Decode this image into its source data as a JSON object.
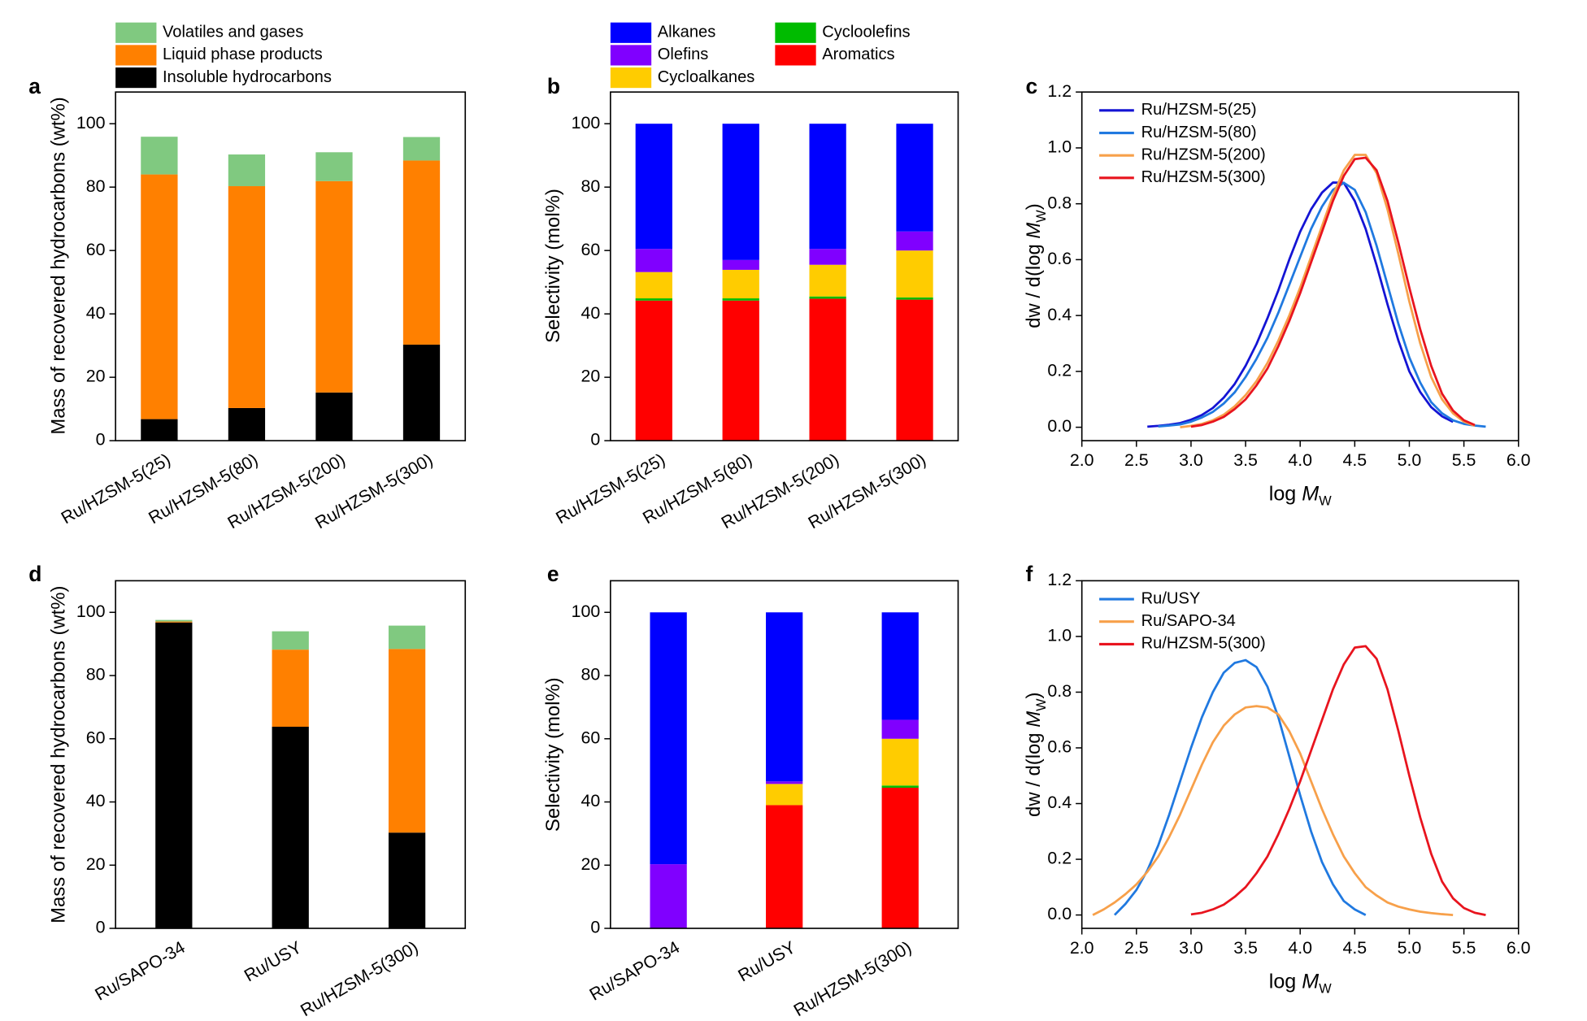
{
  "chart_data": [
    {
      "type": "stacked_bar",
      "panel_label": "a",
      "ylabel": "Mass of recovered hydrocarbons (wt%)",
      "categories": [
        "Ru/HZSM-5(25)",
        "Ru/HZSM-5(80)",
        "Ru/HZSM-5(200)",
        "Ru/HZSM-5(300)"
      ],
      "series": [
        {
          "name": "Insoluble hydrocarbons",
          "color": "#000000",
          "values": [
            6.8,
            10.3,
            15.2,
            30.3
          ]
        },
        {
          "name": "Liquid phase products",
          "color": "#ff8000",
          "values": [
            77.2,
            70,
            66.7,
            58.1
          ]
        },
        {
          "name": "Volatiles and gases",
          "color": "#80c980",
          "values": [
            11.9,
            10,
            9.1,
            7.4
          ]
        }
      ],
      "ylim": [
        0,
        110
      ],
      "yticks": [
        0,
        20,
        40,
        60,
        80,
        100
      ]
    },
    {
      "type": "stacked_bar",
      "panel_label": "b",
      "ylabel": "Selectivity (mol%)",
      "categories": [
        "Ru/HZSM-5(25)",
        "Ru/HZSM-5(80)",
        "Ru/HZSM-5(200)",
        "Ru/HZSM-5(300)"
      ],
      "series": [
        {
          "name": "Aromatics",
          "color": "#ff0000",
          "values": [
            44.2,
            44.2,
            44.8,
            44.5
          ]
        },
        {
          "name": "Cycloolefins",
          "color": "#00bb00",
          "values": [
            0.7,
            0.7,
            0.7,
            0.7
          ]
        },
        {
          "name": "Cycloalkanes",
          "color": "#ffcc00",
          "values": [
            8.3,
            9,
            10,
            14.8
          ]
        },
        {
          "name": "Olefins",
          "color": "#8000ff",
          "values": [
            7.3,
            3.1,
            5,
            6
          ]
        },
        {
          "name": "Alkanes",
          "color": "#0000ff",
          "values": [
            39.5,
            43,
            39.5,
            34
          ]
        }
      ],
      "ylim": [
        0,
        110
      ],
      "yticks": [
        0,
        20,
        40,
        60,
        80,
        100
      ]
    },
    {
      "type": "line",
      "panel_label": "c",
      "ylabel": [
        "dw / d(log ",
        "M",
        "W",
        ")"
      ],
      "xlabel": [
        "log ",
        "M",
        "W"
      ],
      "x": [
        2.6,
        2.7,
        2.8,
        2.9,
        3.0,
        3.1,
        3.2,
        3.3,
        3.4,
        3.5,
        3.6,
        3.7,
        3.8,
        3.9,
        4.0,
        4.1,
        4.2,
        4.3,
        4.4,
        4.5,
        4.6,
        4.7,
        4.8,
        4.9,
        5.0,
        5.1,
        5.2,
        5.3,
        5.4,
        5.5,
        5.6,
        5.7
      ],
      "series": [
        {
          "name": "Ru/HZSM-5(25)",
          "color": "#1414d4",
          "values": [
            0.002,
            0.005,
            0.009,
            0.015,
            0.027,
            0.044,
            0.069,
            0.106,
            0.155,
            0.22,
            0.298,
            0.39,
            0.49,
            0.6,
            0.7,
            0.78,
            0.84,
            0.876,
            0.875,
            0.81,
            0.71,
            0.58,
            0.44,
            0.31,
            0.2,
            0.126,
            0.072,
            0.039,
            0.019,
            null,
            null,
            null
          ]
        },
        {
          "name": "Ru/HZSM-5(80)",
          "color": "#2079e0",
          "values": [
            null,
            0.003,
            0.006,
            0.01,
            0.02,
            0.035,
            0.055,
            0.085,
            0.125,
            0.18,
            0.245,
            0.32,
            0.41,
            0.51,
            0.61,
            0.71,
            0.79,
            0.85,
            0.875,
            0.85,
            0.77,
            0.65,
            0.51,
            0.37,
            0.25,
            0.16,
            0.09,
            0.05,
            0.025,
            0.012,
            0.006,
            0.002
          ]
        },
        {
          "name": "Ru/HZSM-5(200)",
          "color": "#f7a04a",
          "values": [
            null,
            null,
            null,
            0,
            0.005,
            0.012,
            0.025,
            0.045,
            0.075,
            0.115,
            0.165,
            0.23,
            0.31,
            0.4,
            0.5,
            0.61,
            0.72,
            0.83,
            0.92,
            0.975,
            0.975,
            0.91,
            0.78,
            0.62,
            0.45,
            0.3,
            0.18,
            0.1,
            0.05,
            0.02,
            0.005,
            null
          ]
        },
        {
          "name": "Ru/HZSM-5(300)",
          "color": "#e8141e",
          "values": [
            null,
            null,
            null,
            null,
            0.002,
            0.008,
            0.02,
            0.037,
            0.065,
            0.1,
            0.15,
            0.21,
            0.29,
            0.38,
            0.48,
            0.59,
            0.7,
            0.81,
            0.9,
            0.96,
            0.965,
            0.92,
            0.81,
            0.66,
            0.5,
            0.35,
            0.22,
            0.12,
            0.06,
            0.025,
            0.008,
            null
          ]
        }
      ],
      "xlim": [
        2,
        6
      ],
      "xticks": [
        {
          "value": 2,
          "label": "2.0"
        },
        {
          "value": 2.5,
          "label": "2.5"
        },
        {
          "value": 3,
          "label": "3.0"
        },
        {
          "value": 3.5,
          "label": "3.5"
        },
        {
          "value": 4,
          "label": "4.0"
        },
        {
          "value": 4.5,
          "label": "4.5"
        },
        {
          "value": 5,
          "label": "5.0"
        },
        {
          "value": 5.5,
          "label": "5.5"
        },
        {
          "value": 6,
          "label": "6.0"
        }
      ],
      "ylim": [
        -0.048,
        1.2
      ],
      "yticks": [
        {
          "value": 0,
          "label": "0.0"
        },
        0.2,
        0.4,
        0.6,
        0.8,
        {
          "value": 1,
          "label": "1.0"
        },
        1.2
      ]
    },
    {
      "type": "stacked_bar",
      "panel_label": "d",
      "ylabel": "Mass of recovered hydrocarbons (wt%)",
      "categories": [
        "Ru/SAPO-34",
        "Ru/USY",
        "Ru/HZSM-5(300)"
      ],
      "series": [
        {
          "name": "Insoluble hydrocarbons",
          "color": "#000000",
          "values": [
            96.8,
            63.8,
            30.3
          ]
        },
        {
          "name": "Liquid phase products",
          "color": "#ff8000",
          "values": [
            0.3,
            24.4,
            58.1
          ]
        },
        {
          "name": "Volatiles and gases",
          "color": "#80c980",
          "values": [
            0.5,
            5.8,
            7.4
          ]
        }
      ],
      "ylim": [
        0,
        110
      ],
      "yticks": [
        0,
        20,
        40,
        60,
        80,
        100
      ]
    },
    {
      "type": "stacked_bar",
      "panel_label": "e",
      "ylabel": "Selectivity (mol%)",
      "categories": [
        "Ru/SAPO-34",
        "Ru/USY",
        "Ru/HZSM-5(300)"
      ],
      "series": [
        {
          "name": "Aromatics",
          "color": "#ff0000",
          "values": [
            0,
            39,
            44.5
          ]
        },
        {
          "name": "Cycloolefins",
          "color": "#00bb00",
          "values": [
            0,
            0,
            0.7
          ]
        },
        {
          "name": "Cycloalkanes",
          "color": "#ffcc00",
          "values": [
            0,
            6.7,
            14.8
          ]
        },
        {
          "name": "Olefins",
          "color": "#8000ff",
          "values": [
            20.3,
            0.8,
            6
          ]
        },
        {
          "name": "Alkanes",
          "color": "#0000ff",
          "values": [
            79.7,
            53.5,
            34
          ]
        }
      ],
      "ylim": [
        0,
        110
      ],
      "yticks": [
        0,
        20,
        40,
        60,
        80,
        100
      ]
    },
    {
      "type": "line",
      "panel_label": "f",
      "ylabel": [
        "dw / d(log ",
        "M",
        "W",
        ")"
      ],
      "xlabel": [
        "log ",
        "M",
        "W"
      ],
      "x": [
        2.1,
        2.2,
        2.3,
        2.4,
        2.5,
        2.6,
        2.7,
        2.8,
        2.9,
        3.0,
        3.1,
        3.2,
        3.3,
        3.4,
        3.5,
        3.6,
        3.7,
        3.8,
        3.9,
        4.0,
        4.1,
        4.2,
        4.3,
        4.4,
        4.5,
        4.6,
        4.7,
        4.8,
        4.9,
        5.0,
        5.1,
        5.2,
        5.3,
        5.4,
        5.5,
        5.6,
        5.7
      ],
      "series": [
        {
          "name": "Ru/USY",
          "color": "#2079e0",
          "values": [
            null,
            null,
            0,
            0.04,
            0.09,
            0.16,
            0.25,
            0.36,
            0.48,
            0.6,
            0.71,
            0.8,
            0.87,
            0.905,
            0.915,
            0.89,
            0.82,
            0.71,
            0.57,
            0.43,
            0.3,
            0.19,
            0.11,
            0.05,
            0.02,
            0,
            null,
            null,
            null,
            null,
            null,
            null,
            null,
            null,
            null,
            null,
            null
          ]
        },
        {
          "name": "Ru/SAPO-34",
          "color": "#f7a04a",
          "values": [
            0,
            0.02,
            0.045,
            0.075,
            0.11,
            0.155,
            0.21,
            0.28,
            0.36,
            0.45,
            0.54,
            0.62,
            0.68,
            0.72,
            0.745,
            0.75,
            0.745,
            0.72,
            0.66,
            0.58,
            0.48,
            0.38,
            0.29,
            0.21,
            0.15,
            0.1,
            0.07,
            0.045,
            0.03,
            0.02,
            0.012,
            0.007,
            0.003,
            0,
            null,
            null,
            null
          ]
        },
        {
          "name": "Ru/HZSM-5(300)",
          "color": "#e8141e",
          "values": [
            null,
            null,
            null,
            null,
            null,
            null,
            null,
            null,
            null,
            0.002,
            0.008,
            0.02,
            0.037,
            0.065,
            0.1,
            0.15,
            0.21,
            0.29,
            0.38,
            0.48,
            0.59,
            0.7,
            0.81,
            0.9,
            0.96,
            0.965,
            0.92,
            0.81,
            0.66,
            0.5,
            0.35,
            0.22,
            0.12,
            0.06,
            0.025,
            0.008,
            0
          ]
        }
      ],
      "xlim": [
        2,
        6
      ],
      "xticks": [
        {
          "value": 2,
          "label": "2.0"
        },
        {
          "value": 2.5,
          "label": "2.5"
        },
        {
          "value": 3,
          "label": "3.0"
        },
        {
          "value": 3.5,
          "label": "3.5"
        },
        {
          "value": 4,
          "label": "4.0"
        },
        {
          "value": 4.5,
          "label": "4.5"
        },
        {
          "value": 5,
          "label": "5.0"
        },
        {
          "value": 5.5,
          "label": "5.5"
        },
        {
          "value": 6,
          "label": "6.0"
        }
      ],
      "ylim": [
        -0.048,
        1.2
      ],
      "yticks": [
        {
          "value": 0,
          "label": "0.0"
        },
        0.2,
        0.4,
        0.6,
        0.8,
        {
          "value": 1,
          "label": "1.0"
        },
        1.2
      ]
    }
  ]
}
